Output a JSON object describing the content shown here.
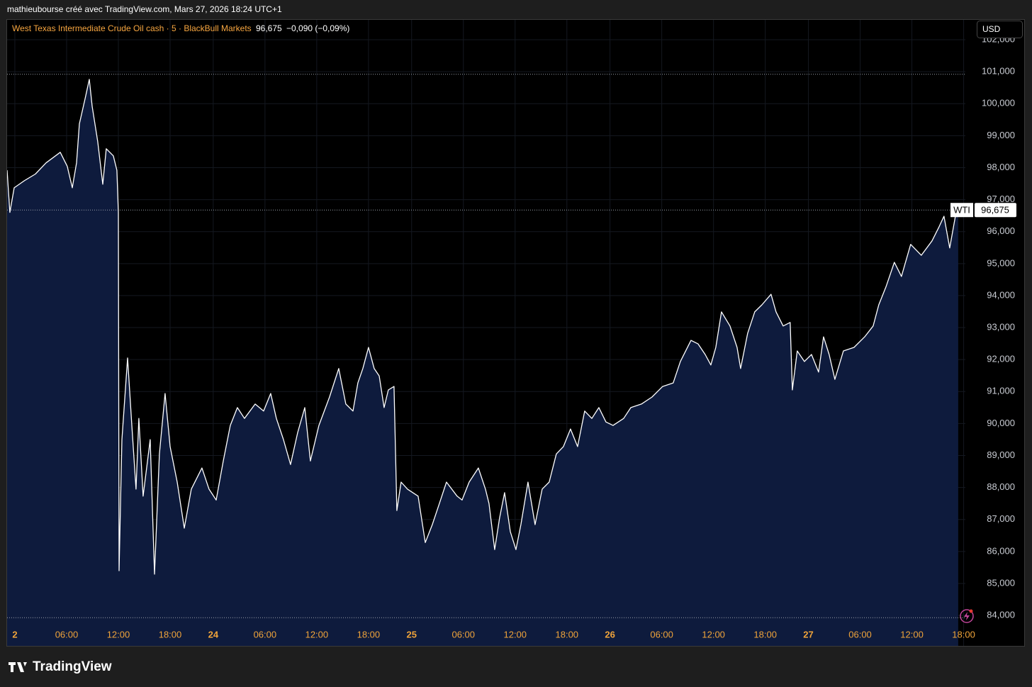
{
  "header": {
    "credit": "mathieubourse créé avec TradingView.com, Mars 27, 2026 18:24 UTC+1"
  },
  "chart_data": {
    "type": "line",
    "title": "West Texas Intermediate Crude Oil cash · 5 · BlackBull Markets",
    "last_label": "96,675",
    "change": "−0,090 (−0,09%)",
    "currency": "USD",
    "symbol": "WTI",
    "last": 96.675,
    "x": [
      -0.9,
      -0.58,
      -0.08,
      1.15,
      2.38,
      3.62,
      5.26,
      6.08,
      6.66,
      7.15,
      7.48,
      8.13,
      8.63,
      8.96,
      9.61,
      10.19,
      10.6,
      11.42,
      11.83,
      12.0,
      12.08,
      12.41,
      13.07,
      13.56,
      14.05,
      14.38,
      14.87,
      15.69,
      16.19,
      16.76,
      17.42,
      18.0,
      18.82,
      19.64,
      20.46,
      21.69,
      22.51,
      23.34,
      24.16,
      24.98,
      25.8,
      26.62,
      27.86,
      28.84,
      29.66,
      30.32,
      31.14,
      31.96,
      32.79,
      33.61,
      34.26,
      35.25,
      36.48,
      37.55,
      38.37,
      39.2,
      39.77,
      40.34,
      41.0,
      41.66,
      42.24,
      42.81,
      43.3,
      43.96,
      44.29,
      44.78,
      45.52,
      46.75,
      47.58,
      48.4,
      49.22,
      50.04,
      51.27,
      51.85,
      52.67,
      53.74,
      54.56,
      54.97,
      55.63,
      56.2,
      56.78,
      57.44,
      58.09,
      58.67,
      59.49,
      60.31,
      61.13,
      61.95,
      62.78,
      63.6,
      64.42,
      65.24,
      66.06,
      66.89,
      67.71,
      68.53,
      69.35,
      70.58,
      71.41,
      72.64,
      73.87,
      75.1,
      76.33,
      77.16,
      78.39,
      79.21,
      80.03,
      80.69,
      81.27,
      81.92,
      82.91,
      83.73,
      84.14,
      84.96,
      85.78,
      86.61,
      87.67,
      88.25,
      89.07,
      89.89,
      90.14,
      90.71,
      91.54,
      92.36,
      93.18,
      93.76,
      94.41,
      95.07,
      96.06,
      97.29,
      98.52,
      99.51,
      100.16,
      100.99,
      101.97,
      102.79,
      103.86,
      105.09,
      106.33,
      107.15,
      107.72,
      108.38,
      109.04,
      109.37
    ],
    "values": [
      97.92,
      96.6,
      97.37,
      97.6,
      97.8,
      98.15,
      98.48,
      98.04,
      97.37,
      98.15,
      99.37,
      100.14,
      100.76,
      99.92,
      98.81,
      97.48,
      98.59,
      98.37,
      97.92,
      96.6,
      85.4,
      89.5,
      92.05,
      89.94,
      87.95,
      90.16,
      87.73,
      89.5,
      85.29,
      89.05,
      90.94,
      89.28,
      88.17,
      86.73,
      87.95,
      88.61,
      87.95,
      87.61,
      88.83,
      89.94,
      90.5,
      90.16,
      90.61,
      90.39,
      90.94,
      90.16,
      89.5,
      88.72,
      89.72,
      90.5,
      88.83,
      89.94,
      90.83,
      91.72,
      90.61,
      90.39,
      91.27,
      91.72,
      92.38,
      91.72,
      91.49,
      90.5,
      91.05,
      91.16,
      87.28,
      88.17,
      87.95,
      87.73,
      86.28,
      86.84,
      87.5,
      88.17,
      87.73,
      87.61,
      88.17,
      88.61,
      87.95,
      87.5,
      86.06,
      87.06,
      87.84,
      86.62,
      86.06,
      86.84,
      88.17,
      86.84,
      87.95,
      88.17,
      89.05,
      89.28,
      89.83,
      89.28,
      90.39,
      90.16,
      90.5,
      90.05,
      89.94,
      90.16,
      90.5,
      90.61,
      90.83,
      91.16,
      91.27,
      91.94,
      92.6,
      92.49,
      92.16,
      91.83,
      92.38,
      93.49,
      93.05,
      92.38,
      91.72,
      92.82,
      93.49,
      93.71,
      94.04,
      93.49,
      93.05,
      93.16,
      91.05,
      92.27,
      91.94,
      92.16,
      91.61,
      92.71,
      92.16,
      91.38,
      92.27,
      92.38,
      92.71,
      93.05,
      93.71,
      94.27,
      95.04,
      94.6,
      95.6,
      95.26,
      95.71,
      96.15,
      96.48,
      95.49,
      96.48,
      96.675
    ],
    "color": "#ffffff",
    "fill_color": "#0e1b3d",
    "xlim": [
      -0.9,
      110.2
    ],
    "ylim": [
      83.05,
      102.62
    ],
    "xticks": [
      {
        "value": 0,
        "label": "2"
      },
      {
        "value": 6,
        "label": "06:00"
      },
      {
        "value": 12,
        "label": "12:00"
      },
      {
        "value": 18,
        "label": "18:00"
      },
      {
        "value": 23,
        "label": "24"
      },
      {
        "value": 29,
        "label": "06:00"
      },
      {
        "value": 35,
        "label": "12:00"
      },
      {
        "value": 41,
        "label": "18:00"
      },
      {
        "value": 46,
        "label": "25"
      },
      {
        "value": 52,
        "label": "06:00"
      },
      {
        "value": 58,
        "label": "12:00"
      },
      {
        "value": 64,
        "label": "18:00"
      },
      {
        "value": 69,
        "label": "26"
      },
      {
        "value": 75,
        "label": "06:00"
      },
      {
        "value": 81,
        "label": "12:00"
      },
      {
        "value": 87,
        "label": "18:00"
      },
      {
        "value": 92,
        "label": "27"
      },
      {
        "value": 98,
        "label": "06:00"
      },
      {
        "value": 104,
        "label": "12:00"
      },
      {
        "value": 110,
        "label": "18:00"
      }
    ],
    "yticks": [
      {
        "value": 84,
        "label": "84,000"
      },
      {
        "value": 85,
        "label": "85,000"
      },
      {
        "value": 86,
        "label": "86,000"
      },
      {
        "value": 87,
        "label": "87,000"
      },
      {
        "value": 88,
        "label": "88,000"
      },
      {
        "value": 89,
        "label": "89,000"
      },
      {
        "value": 90,
        "label": "90,000"
      },
      {
        "value": 91,
        "label": "91,000"
      },
      {
        "value": 92,
        "label": "92,000"
      },
      {
        "value": 93,
        "label": "93,000"
      },
      {
        "value": 94,
        "label": "94,000"
      },
      {
        "value": 95,
        "label": "95,000"
      },
      {
        "value": 96,
        "label": "96,000"
      },
      {
        "value": 97,
        "label": "97,000"
      },
      {
        "value": 98,
        "label": "98,000"
      },
      {
        "value": 99,
        "label": "99,000"
      },
      {
        "value": 100,
        "label": "100,000"
      },
      {
        "value": 101,
        "label": "101,000"
      },
      {
        "value": 102,
        "label": "102,000"
      }
    ],
    "grid": true,
    "high_line": 100.92,
    "low_line": 83.93
  },
  "footer": {
    "brand": "TradingView"
  }
}
